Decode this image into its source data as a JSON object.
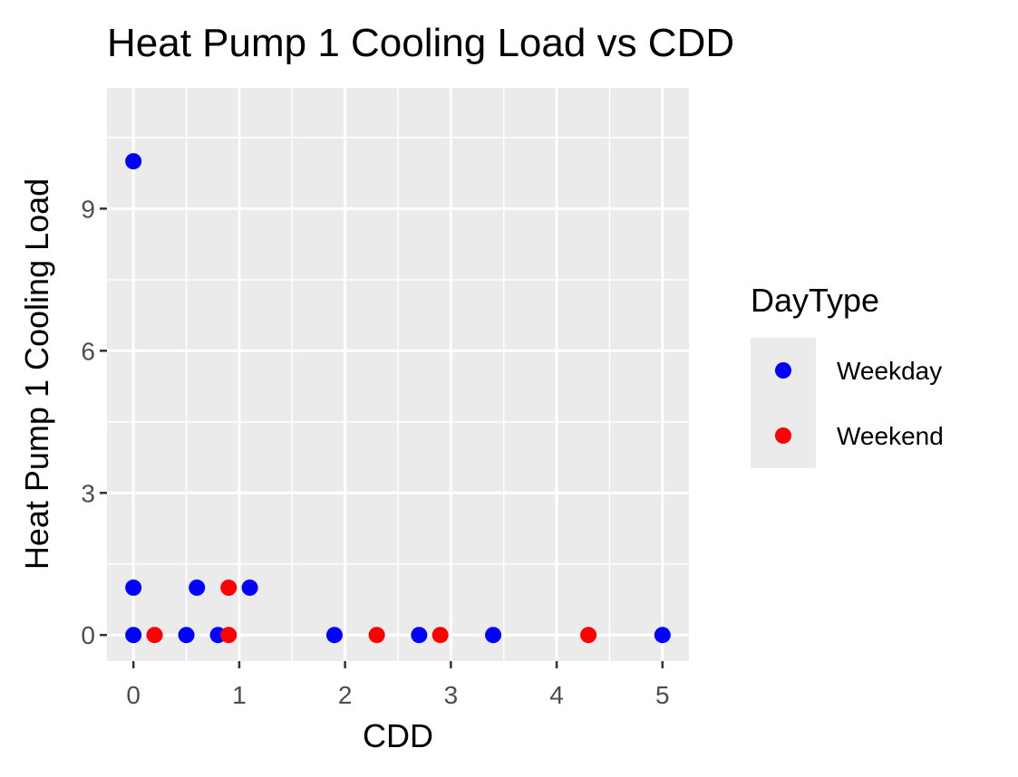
{
  "chart_data": {
    "type": "scatter",
    "title": "Heat Pump 1 Cooling Load vs CDD",
    "xlabel": "CDD",
    "ylabel": "Heat Pump 1 Cooling Load",
    "xlim": [
      -0.25,
      5.25
    ],
    "ylim": [
      -0.55,
      11.55
    ],
    "x_ticks": [
      0,
      1,
      2,
      3,
      4,
      5
    ],
    "y_ticks": [
      0,
      3,
      6,
      9
    ],
    "grid": true,
    "legend": {
      "title": "DayType",
      "position": "right"
    },
    "series": [
      {
        "name": "Weekday",
        "color": "#0000FF",
        "points": [
          {
            "x": 0,
            "y": 10
          },
          {
            "x": 0,
            "y": 1
          },
          {
            "x": 0,
            "y": 0
          },
          {
            "x": 0.5,
            "y": 0
          },
          {
            "x": 0.6,
            "y": 1
          },
          {
            "x": 0.8,
            "y": 0
          },
          {
            "x": 1.1,
            "y": 1
          },
          {
            "x": 1.9,
            "y": 0
          },
          {
            "x": 2.7,
            "y": 0
          },
          {
            "x": 3.4,
            "y": 0
          },
          {
            "x": 5.0,
            "y": 0
          }
        ]
      },
      {
        "name": "Weekend",
        "color": "#FF0000",
        "points": [
          {
            "x": 0.2,
            "y": 0
          },
          {
            "x": 0.9,
            "y": 1
          },
          {
            "x": 0.9,
            "y": 0
          },
          {
            "x": 2.3,
            "y": 0
          },
          {
            "x": 2.9,
            "y": 0
          },
          {
            "x": 4.3,
            "y": 0
          }
        ]
      }
    ]
  },
  "colors": {
    "panel_background": "#EBEBEB",
    "grid": "#FFFFFF",
    "axis_text": "#4D4D4D",
    "tick": "#333333"
  }
}
